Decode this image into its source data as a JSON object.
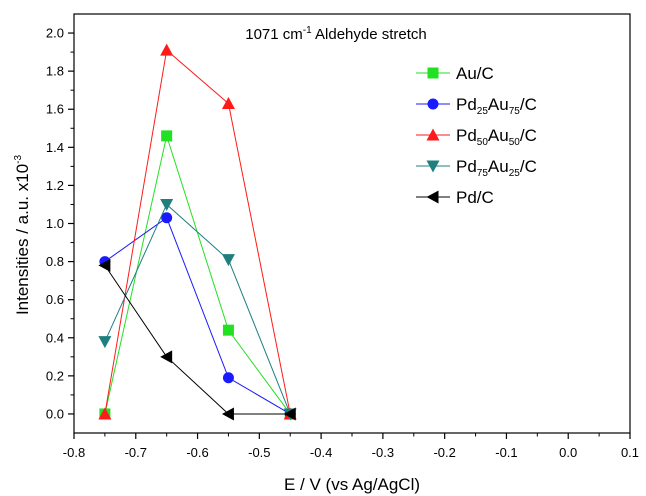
{
  "chart_data": {
    "type": "line",
    "title": {
      "prefix": "1071 cm",
      "superscript": "-1",
      "suffix": " Aldehyde stretch"
    },
    "xlabel": "E / V (vs Ag/AgCl)",
    "ylabel": "Intensities / a.u. x10",
    "ylabel_superscript": "-3",
    "xlim": [
      -0.8,
      0.1
    ],
    "ylim": [
      -0.1,
      2.1
    ],
    "x_ticks": [
      "-0.8",
      "-0.7",
      "-0.6",
      "-0.5",
      "-0.4",
      "-0.3",
      "-0.2",
      "-0.1",
      "0.0",
      "0.1"
    ],
    "y_ticks": [
      "0.0",
      "0.2",
      "0.4",
      "0.6",
      "0.8",
      "1.0",
      "1.2",
      "1.4",
      "1.6",
      "1.8",
      "2.0"
    ],
    "legend_position": "top-right",
    "series": [
      {
        "name_parts": [
          {
            "t": "Au/C",
            "sub": false
          }
        ],
        "color": "#22e022",
        "marker": "square",
        "x": [
          -0.75,
          -0.65,
          -0.55,
          -0.45
        ],
        "y": [
          0.0,
          1.46,
          0.44,
          0.0
        ]
      },
      {
        "name_parts": [
          {
            "t": "Pd",
            "sub": false
          },
          {
            "t": "25",
            "sub": true
          },
          {
            "t": "Au",
            "sub": false
          },
          {
            "t": "75",
            "sub": true
          },
          {
            "t": "/C",
            "sub": false
          }
        ],
        "color": "#1a1aff",
        "marker": "circle",
        "x": [
          -0.75,
          -0.65,
          -0.55,
          -0.45
        ],
        "y": [
          0.8,
          1.03,
          0.19,
          0.0
        ]
      },
      {
        "name_parts": [
          {
            "t": "Pd",
            "sub": false
          },
          {
            "t": "50",
            "sub": true
          },
          {
            "t": "Au",
            "sub": false
          },
          {
            "t": "50",
            "sub": true
          },
          {
            "t": "/C",
            "sub": false
          }
        ],
        "color": "#ff1a1a",
        "marker": "triangle-up",
        "x": [
          -0.75,
          -0.65,
          -0.55,
          -0.45
        ],
        "y": [
          0.0,
          1.91,
          1.63,
          0.0
        ]
      },
      {
        "name_parts": [
          {
            "t": "Pd",
            "sub": false
          },
          {
            "t": "75",
            "sub": true
          },
          {
            "t": "Au",
            "sub": false
          },
          {
            "t": "25",
            "sub": true
          },
          {
            "t": "/C",
            "sub": false
          }
        ],
        "color": "#1f7f7f",
        "marker": "triangle-down",
        "x": [
          -0.75,
          -0.65,
          -0.55,
          -0.45
        ],
        "y": [
          0.38,
          1.1,
          0.81,
          0.0
        ]
      },
      {
        "name_parts": [
          {
            "t": "Pd/C",
            "sub": false
          }
        ],
        "color": "#000000",
        "marker": "triangle-left",
        "x": [
          -0.75,
          -0.65,
          -0.55,
          -0.45
        ],
        "y": [
          0.78,
          0.3,
          0.0,
          0.0
        ]
      }
    ]
  }
}
